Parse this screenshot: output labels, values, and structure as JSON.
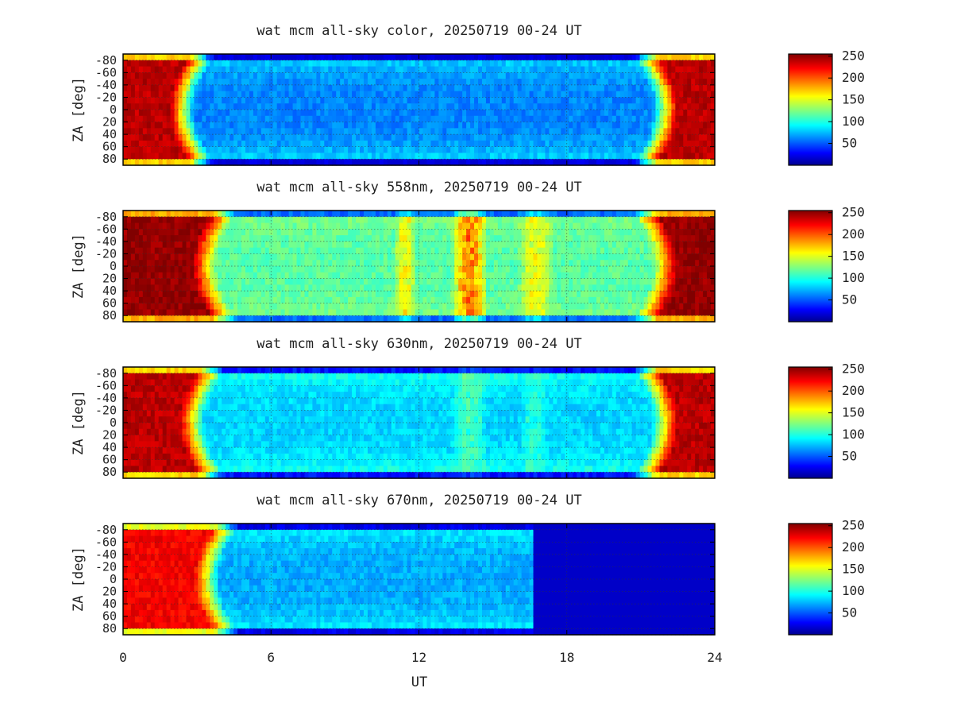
{
  "chart_data": [
    {
      "type": "heatmap",
      "title": "wat mcm all-sky color, 20250719 00-24 UT",
      "xlim": [
        0,
        24
      ],
      "ylim": [
        -90,
        90
      ],
      "y_inverted": true,
      "grid": true,
      "colorbar": {
        "ticks": [
          50,
          100,
          150,
          200,
          250
        ],
        "range": [
          0,
          255
        ]
      },
      "profile": {
        "twilight_end_ut": 2.4,
        "twilight_start_ut": 22.0,
        "twilight_level": 240,
        "night_level": 65,
        "horizon_level": 95,
        "data_end_ut": 24,
        "brightening": []
      }
    },
    {
      "type": "heatmap",
      "title": "wat mcm all-sky 558nm, 20250719 00-24 UT",
      "xlim": [
        0,
        24
      ],
      "ylim": [
        -90,
        90
      ],
      "y_inverted": true,
      "grid": true,
      "colorbar": {
        "ticks": [
          50,
          100,
          150,
          200,
          250
        ],
        "range": [
          0,
          255
        ]
      },
      "profile": {
        "twilight_end_ut": 3.3,
        "twilight_start_ut": 22.0,
        "twilight_level": 250,
        "night_level": 118,
        "horizon_level": 130,
        "data_end_ut": 24,
        "brightening": [
          [
            13.3,
            14.8,
            210
          ],
          [
            11.0,
            11.9,
            170
          ],
          [
            16.0,
            17.5,
            165
          ]
        ]
      }
    },
    {
      "type": "heatmap",
      "title": "wat mcm all-sky 630nm, 20250719 00-24 UT",
      "xlim": [
        0,
        24
      ],
      "ylim": [
        -90,
        90
      ],
      "y_inverted": true,
      "grid": true,
      "colorbar": {
        "ticks": [
          50,
          100,
          150,
          200,
          250
        ],
        "range": [
          0,
          255
        ]
      },
      "profile": {
        "twilight_end_ut": 2.8,
        "twilight_start_ut": 22.0,
        "twilight_level": 240,
        "night_level": 85,
        "horizon_level": 110,
        "data_end_ut": 24,
        "brightening": [
          [
            13.3,
            14.8,
            120
          ],
          [
            16.1,
            17.2,
            110
          ]
        ]
      }
    },
    {
      "type": "heatmap",
      "title": "wat mcm all-sky 670nm, 20250719 00-24 UT",
      "xlim": [
        0,
        24
      ],
      "ylim": [
        -90,
        90
      ],
      "y_inverted": true,
      "grid": true,
      "colorbar": {
        "ticks": [
          50,
          100,
          150,
          200,
          250
        ],
        "range": [
          0,
          255
        ]
      },
      "profile": {
        "twilight_end_ut": 3.4,
        "twilight_start_ut": 24,
        "twilight_level": 225,
        "night_level": 75,
        "horizon_level": 100,
        "data_end_ut": 16.6,
        "brightening": []
      }
    }
  ],
  "y_tick_labels": [
    "-80",
    "-60",
    "-40",
    "-20",
    "0",
    "20",
    "40",
    "60",
    "80"
  ],
  "y_tick_values": [
    -80,
    -60,
    -40,
    -20,
    0,
    20,
    40,
    60,
    80
  ],
  "x_tick_labels": [
    "0",
    "6",
    "12",
    "18",
    "24"
  ],
  "x_tick_values": [
    0,
    6,
    12,
    18,
    24
  ],
  "ylabel": "ZA [deg]",
  "xlabel": "UT"
}
